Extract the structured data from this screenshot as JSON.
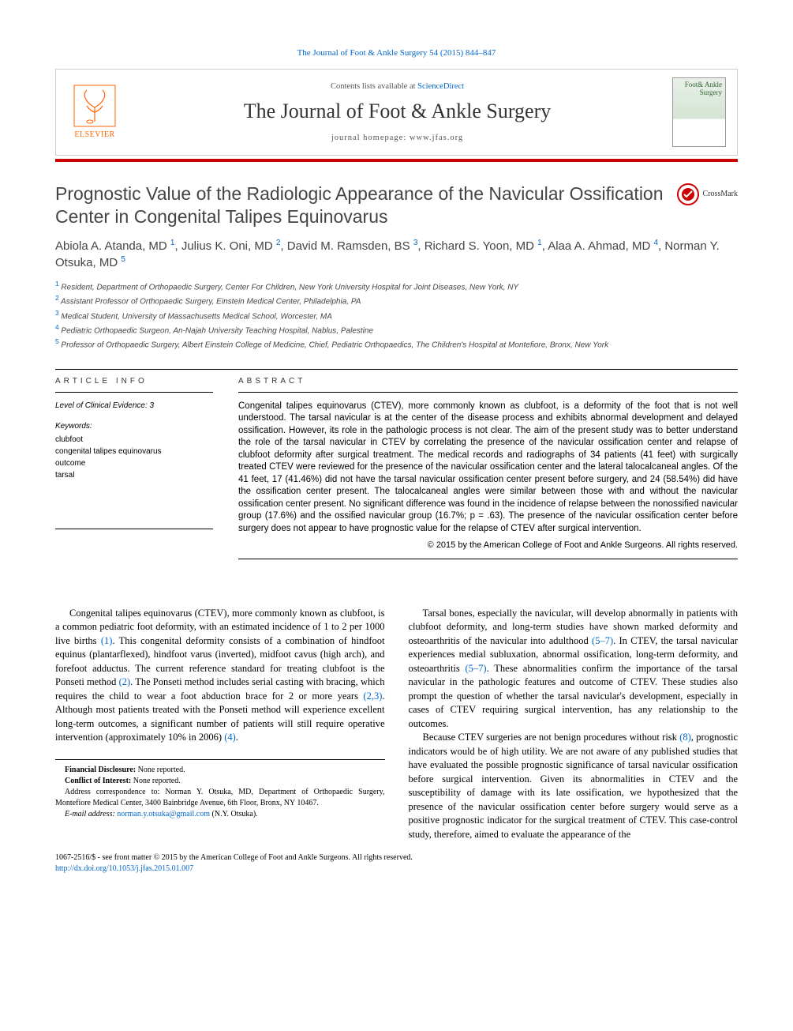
{
  "citation": "The Journal of Foot & Ankle Surgery 54 (2015) 844–847",
  "header": {
    "contents_prefix": "Contents lists available at ",
    "contents_link": "ScienceDirect",
    "journal_name": "The Journal of Foot & Ankle Surgery",
    "homepage_prefix": "journal homepage: ",
    "homepage": "www.jfas.org",
    "publisher": "ELSEVIER",
    "cover_label": "Foot& Ankle Surgery"
  },
  "crossmark_label": "CrossMark",
  "title": "Prognostic Value of the Radiologic Appearance of the Navicular Ossification Center in Congenital Talipes Equinovarus",
  "authors_html": "Abiola A. Atanda, MD <sup>1</sup>, Julius K. Oni, MD <sup>2</sup>, David M. Ramsden, BS <sup>3</sup>, Richard S. Yoon, MD <sup>1</sup>, Alaa A. Ahmad, MD <sup>4</sup>, Norman Y. Otsuka, MD <sup>5</sup>",
  "affiliations": [
    "Resident, Department of Orthopaedic Surgery, Center For Children, New York University Hospital for Joint Diseases, New York, NY",
    "Assistant Professor of Orthopaedic Surgery, Einstein Medical Center, Philadelphia, PA",
    "Medical Student, University of Massachusetts Medical School, Worcester, MA",
    "Pediatric Orthopaedic Surgeon, An-Najah University Teaching Hospital, Nablus, Palestine",
    "Professor of Orthopaedic Surgery, Albert Einstein College of Medicine, Chief, Pediatric Orthopaedics, The Children's Hospital at Montefiore, Bronx, New York"
  ],
  "info": {
    "heading": "ARTICLE INFO",
    "evidence": "Level of Clinical Evidence: 3",
    "kw_heading": "Keywords:",
    "keywords": [
      "clubfoot",
      "congenital talipes equinovarus",
      "outcome",
      "tarsal"
    ]
  },
  "abstract": {
    "heading": "ABSTRACT",
    "text": "Congenital talipes equinovarus (CTEV), more commonly known as clubfoot, is a deformity of the foot that is not well understood. The tarsal navicular is at the center of the disease process and exhibits abnormal development and delayed ossification. However, its role in the pathologic process is not clear. The aim of the present study was to better understand the role of the tarsal navicular in CTEV by correlating the presence of the navicular ossification center and relapse of clubfoot deformity after surgical treatment. The medical records and radiographs of 34 patients (41 feet) with surgically treated CTEV were reviewed for the presence of the navicular ossification center and the lateral talocalcaneal angles. Of the 41 feet, 17 (41.46%) did not have the tarsal navicular ossification center present before surgery, and 24 (58.54%) did have the ossification center present. The talocalcaneal angles were similar between those with and without the navicular ossification center present. No significant difference was found in the incidence of relapse between the nonossified navicular group (17.6%) and the ossified navicular group (16.7%; p = .63). The presence of the navicular ossification center before surgery does not appear to have prognostic value for the relapse of CTEV after surgical intervention.",
    "copyright": "© 2015 by the American College of Foot and Ankle Surgeons. All rights reserved."
  },
  "body": {
    "col1": {
      "p1a": "Congenital talipes equinovarus (CTEV), more commonly known as clubfoot, is a common pediatric foot deformity, with an estimated incidence of 1 to 2 per 1000 live births ",
      "c1": "(1)",
      "p1b": ". This congenital deformity consists of a combination of hindfoot equinus (plantarflexed), hindfoot varus (inverted), midfoot cavus (high arch), and forefoot adductus. The current reference standard for treating clubfoot is the Ponseti method ",
      "c2": "(2)",
      "p1c": ". The Ponseti method includes serial casting with bracing, which requires the child to wear a foot abduction brace for 2 or more years ",
      "c3": "(2,3)",
      "p1d": ". Although most patients treated with the Ponseti method will experience excellent long-term outcomes, a significant number of patients will still require operative intervention (approximately 10% in 2006) ",
      "c4": "(4)",
      "p1e": "."
    },
    "col2": {
      "p1a": "Tarsal bones, especially the navicular, will develop abnormally in patients with clubfoot deformity, and long-term studies have shown marked deformity and osteoarthritis of the navicular into adulthood ",
      "c1": "(5–7)",
      "p1b": ". In CTEV, the tarsal navicular experiences medial subluxation, abnormal ossification, long-term deformity, and osteoarthritis ",
      "c2": "(5–7)",
      "p1c": ". These abnormalities confirm the importance of the tarsal navicular in the pathologic features and outcome of CTEV. These studies also prompt the question of whether the tarsal navicular's development, especially in cases of CTEV requiring surgical intervention, has any relationship to the outcomes.",
      "p2a": "Because CTEV surgeries are not benign procedures without risk ",
      "c3": "(8)",
      "p2b": ", prognostic indicators would be of high utility. We are not aware of any published studies that have evaluated the possible prognostic significance of tarsal navicular ossification before surgical intervention. Given its abnormalities in CTEV and the susceptibility of damage with its late ossification, we hypothesized that the presence of the navicular ossification center before surgery would serve as a positive prognostic indicator for the surgical treatment of CTEV. This case-control study, therefore, aimed to evaluate the appearance of the"
    }
  },
  "footnotes": {
    "fd_label": "Financial Disclosure:",
    "fd_value": " None reported.",
    "coi_label": "Conflict of Interest:",
    "coi_value": " None reported.",
    "corr": "Address correspondence to: Norman Y. Otsuka, MD, Department of Orthopaedic Surgery, Montefiore Medical Center, 3400 Bainbridge Avenue, 6th Floor, Bronx, NY 10467.",
    "email_label": "E-mail address: ",
    "email": "norman.y.otsuka@gmail.com",
    "email_suffix": " (N.Y. Otsuka)."
  },
  "bottom": {
    "line1": "1067-2516/$ - see front matter © 2015 by the American College of Foot and Ankle Surgeons. All rights reserved.",
    "doi": "http://dx.doi.org/10.1053/j.jfas.2015.01.007"
  },
  "colors": {
    "link": "#0066cc",
    "divider": "#cc0000",
    "elsevier": "#ff6600"
  }
}
